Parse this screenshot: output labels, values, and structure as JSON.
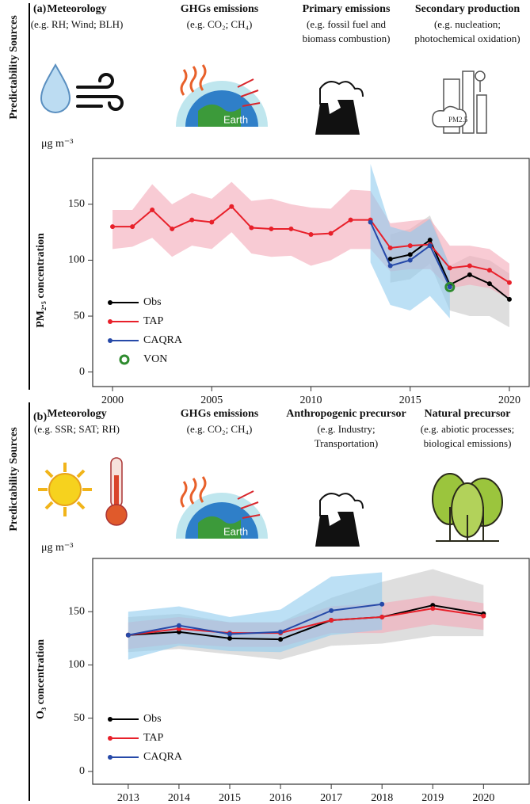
{
  "chart_data": [
    {
      "type": "line",
      "panel_label": "(a)",
      "side_label": "Predictability Sources",
      "sources": [
        {
          "title": "Meteorology",
          "desc": [
            "(e.g. RH; Wind; BLH)"
          ]
        },
        {
          "title": "GHGs emissions",
          "desc": [
            "(e.g. CO₂; CH₄)"
          ]
        },
        {
          "title": "Primary emissions",
          "desc": [
            "(e.g. fossil fuel and",
            "biomass combustion)"
          ]
        },
        {
          "title": "Secondary production",
          "desc": [
            "(e.g. nucleation;",
            "photochemical oxidation)"
          ]
        }
      ],
      "unit_label": "μg m⁻³",
      "ylabel": "PM₂.₅ concentration",
      "x": [
        2000,
        2001,
        2002,
        2003,
        2004,
        2005,
        2006,
        2007,
        2008,
        2009,
        2010,
        2011,
        2012,
        2013,
        2014,
        2015,
        2016,
        2017,
        2018,
        2019,
        2020
      ],
      "xlim": [
        1999,
        2021
      ],
      "xticks": [
        2000,
        2005,
        2010,
        2015,
        2020
      ],
      "ylim": [
        -13,
        191
      ],
      "yticks": [
        0,
        50,
        100,
        150
      ],
      "legend": "lower left",
      "series": [
        {
          "name": "Obs",
          "color": "#000000",
          "band_color": "#c8c8c8",
          "values": [
            null,
            null,
            null,
            null,
            null,
            null,
            null,
            null,
            null,
            null,
            null,
            null,
            null,
            null,
            101,
            105,
            118,
            78,
            87,
            79,
            65
          ],
          "upper": [
            null,
            null,
            null,
            null,
            null,
            null,
            null,
            null,
            null,
            null,
            null,
            null,
            null,
            null,
            123,
            128,
            140,
            95,
            104,
            100,
            88
          ],
          "lower": [
            null,
            null,
            null,
            null,
            null,
            null,
            null,
            null,
            null,
            null,
            null,
            null,
            null,
            null,
            80,
            83,
            97,
            55,
            50,
            50,
            40
          ]
        },
        {
          "name": "TAP",
          "color": "#e8202a",
          "band_color": "#f4a9b8",
          "values": [
            130,
            130,
            145,
            128,
            136,
            134,
            148,
            129,
            128,
            128,
            123,
            124,
            136,
            136,
            111,
            113,
            114,
            93,
            95,
            91,
            80
          ],
          "upper": [
            145,
            145,
            168,
            150,
            160,
            155,
            170,
            153,
            155,
            150,
            147,
            146,
            163,
            162,
            133,
            135,
            137,
            113,
            113,
            110,
            97
          ],
          "lower": [
            110,
            112,
            120,
            103,
            113,
            110,
            125,
            106,
            103,
            104,
            95,
            100,
            110,
            110,
            90,
            92,
            92,
            75,
            78,
            75,
            65
          ]
        },
        {
          "name": "CAQRA",
          "color": "#2649a8",
          "band_color": "#8fcbee",
          "values": [
            null,
            null,
            null,
            null,
            null,
            null,
            null,
            null,
            null,
            null,
            null,
            null,
            null,
            134,
            95,
            100,
            113,
            76,
            null,
            null,
            null
          ],
          "upper": [
            null,
            null,
            null,
            null,
            null,
            null,
            null,
            null,
            null,
            null,
            null,
            null,
            null,
            186,
            130,
            125,
            137,
            95,
            null,
            null,
            null
          ],
          "lower": [
            null,
            null,
            null,
            null,
            null,
            null,
            null,
            null,
            null,
            null,
            null,
            null,
            null,
            98,
            60,
            55,
            68,
            48,
            null,
            null,
            null
          ]
        },
        {
          "name": "VON",
          "color": "#2e8b2e",
          "marker": "ring",
          "values": [
            null,
            null,
            null,
            null,
            null,
            null,
            null,
            null,
            null,
            null,
            null,
            null,
            null,
            null,
            null,
            null,
            null,
            76,
            null,
            null,
            null
          ]
        }
      ]
    },
    {
      "type": "line",
      "panel_label": "(b)",
      "side_label": "Predictability Sources",
      "sources": [
        {
          "title": "Meteorology",
          "desc": [
            "(e.g. SSR; SAT; RH)"
          ]
        },
        {
          "title": "GHGs emissions",
          "desc": [
            "(e.g. CO₂; CH₄)"
          ]
        },
        {
          "title": "Anthropogenic precursor",
          "desc": [
            "(e.g. Industry;",
            "Transportation)"
          ]
        },
        {
          "title": "Natural precursor",
          "desc": [
            "(e.g. abiotic processes;",
            "biological emissions)"
          ]
        }
      ],
      "unit_label": "μg m⁻³",
      "ylabel": "O₃ concentration",
      "x": [
        2013,
        2014,
        2015,
        2016,
        2017,
        2018,
        2019,
        2020
      ],
      "xlim": [
        2012.3,
        2020.9
      ],
      "xticks": [
        2013,
        2014,
        2015,
        2016,
        2017,
        2018,
        2019,
        2020
      ],
      "ylim": [
        -12,
        200
      ],
      "yticks": [
        0,
        50,
        100,
        150
      ],
      "legend": "lower left",
      "series": [
        {
          "name": "Obs",
          "color": "#000000",
          "band_color": "#c8c8c8",
          "values": [
            128,
            131,
            125,
            124,
            142,
            145,
            156,
            148
          ],
          "upper": [
            145,
            148,
            140,
            140,
            163,
            178,
            190,
            175
          ],
          "lower": [
            112,
            115,
            110,
            105,
            118,
            120,
            127,
            127
          ]
        },
        {
          "name": "TAP",
          "color": "#e8202a",
          "band_color": "#f4a9b8",
          "values": [
            128,
            134,
            130,
            130,
            142,
            145,
            153,
            146
          ],
          "upper": [
            140,
            145,
            140,
            140,
            155,
            158,
            165,
            158
          ],
          "lower": [
            115,
            120,
            117,
            117,
            130,
            130,
            138,
            133
          ]
        },
        {
          "name": "CAQRA",
          "color": "#2649a8",
          "band_color": "#8fcbee",
          "values": [
            128,
            137,
            129,
            131,
            151,
            157,
            null,
            null
          ],
          "upper": [
            150,
            155,
            145,
            152,
            183,
            187,
            null,
            null
          ],
          "lower": [
            105,
            118,
            113,
            112,
            128,
            133,
            null,
            null
          ]
        }
      ]
    }
  ]
}
